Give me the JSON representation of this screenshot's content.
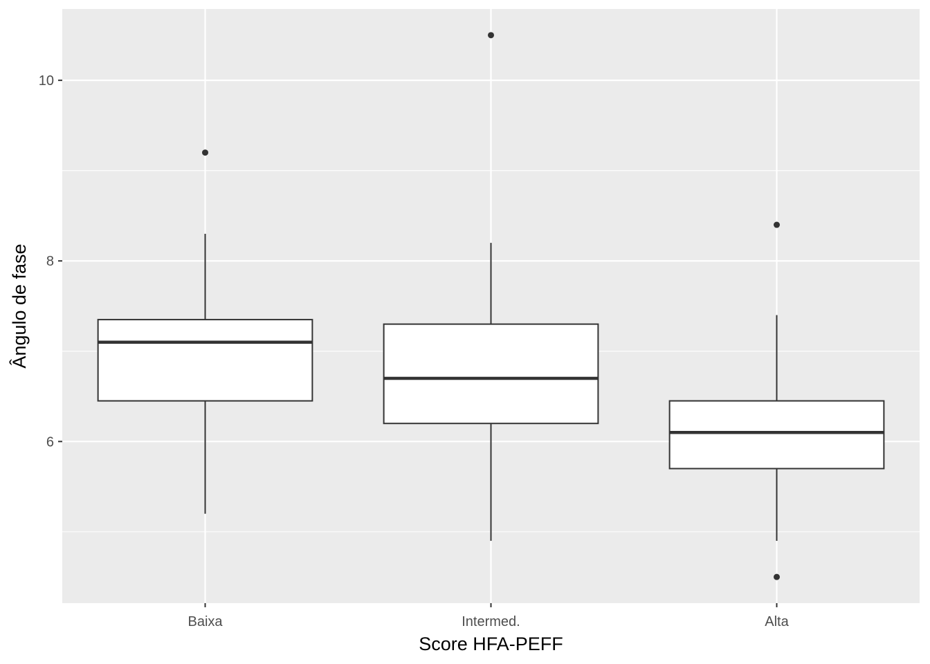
{
  "chart_data": {
    "type": "boxplot",
    "title": "",
    "xlabel": "Score HFA-PEFF",
    "ylabel": "Ângulo de fase",
    "categories": [
      "Baixa",
      "Intermed.",
      "Alta"
    ],
    "boxes": [
      {
        "category": "Baixa",
        "whisker_low": 5.2,
        "q1": 6.45,
        "median": 7.1,
        "q3": 7.35,
        "whisker_high": 8.3,
        "outliers": [
          9.2
        ]
      },
      {
        "category": "Intermed.",
        "whisker_low": 4.9,
        "q1": 6.2,
        "median": 6.7,
        "q3": 7.3,
        "whisker_high": 8.2,
        "outliers": [
          10.5
        ]
      },
      {
        "category": "Alta",
        "whisker_low": 4.9,
        "q1": 5.7,
        "median": 6.1,
        "q3": 6.45,
        "whisker_high": 7.4,
        "outliers": [
          8.4,
          4.5
        ]
      }
    ],
    "ylim": [
      4.21,
      10.79
    ],
    "yticks": [
      6,
      8,
      10
    ],
    "yticks_minor": [
      5,
      7,
      9
    ],
    "grid": true,
    "legend": "none",
    "colors": {
      "panel_bg": "#ebebeb",
      "grid": "#ffffff",
      "box_fill": "#ffffff",
      "box_line": "#333333",
      "outlier": "#333333"
    }
  }
}
